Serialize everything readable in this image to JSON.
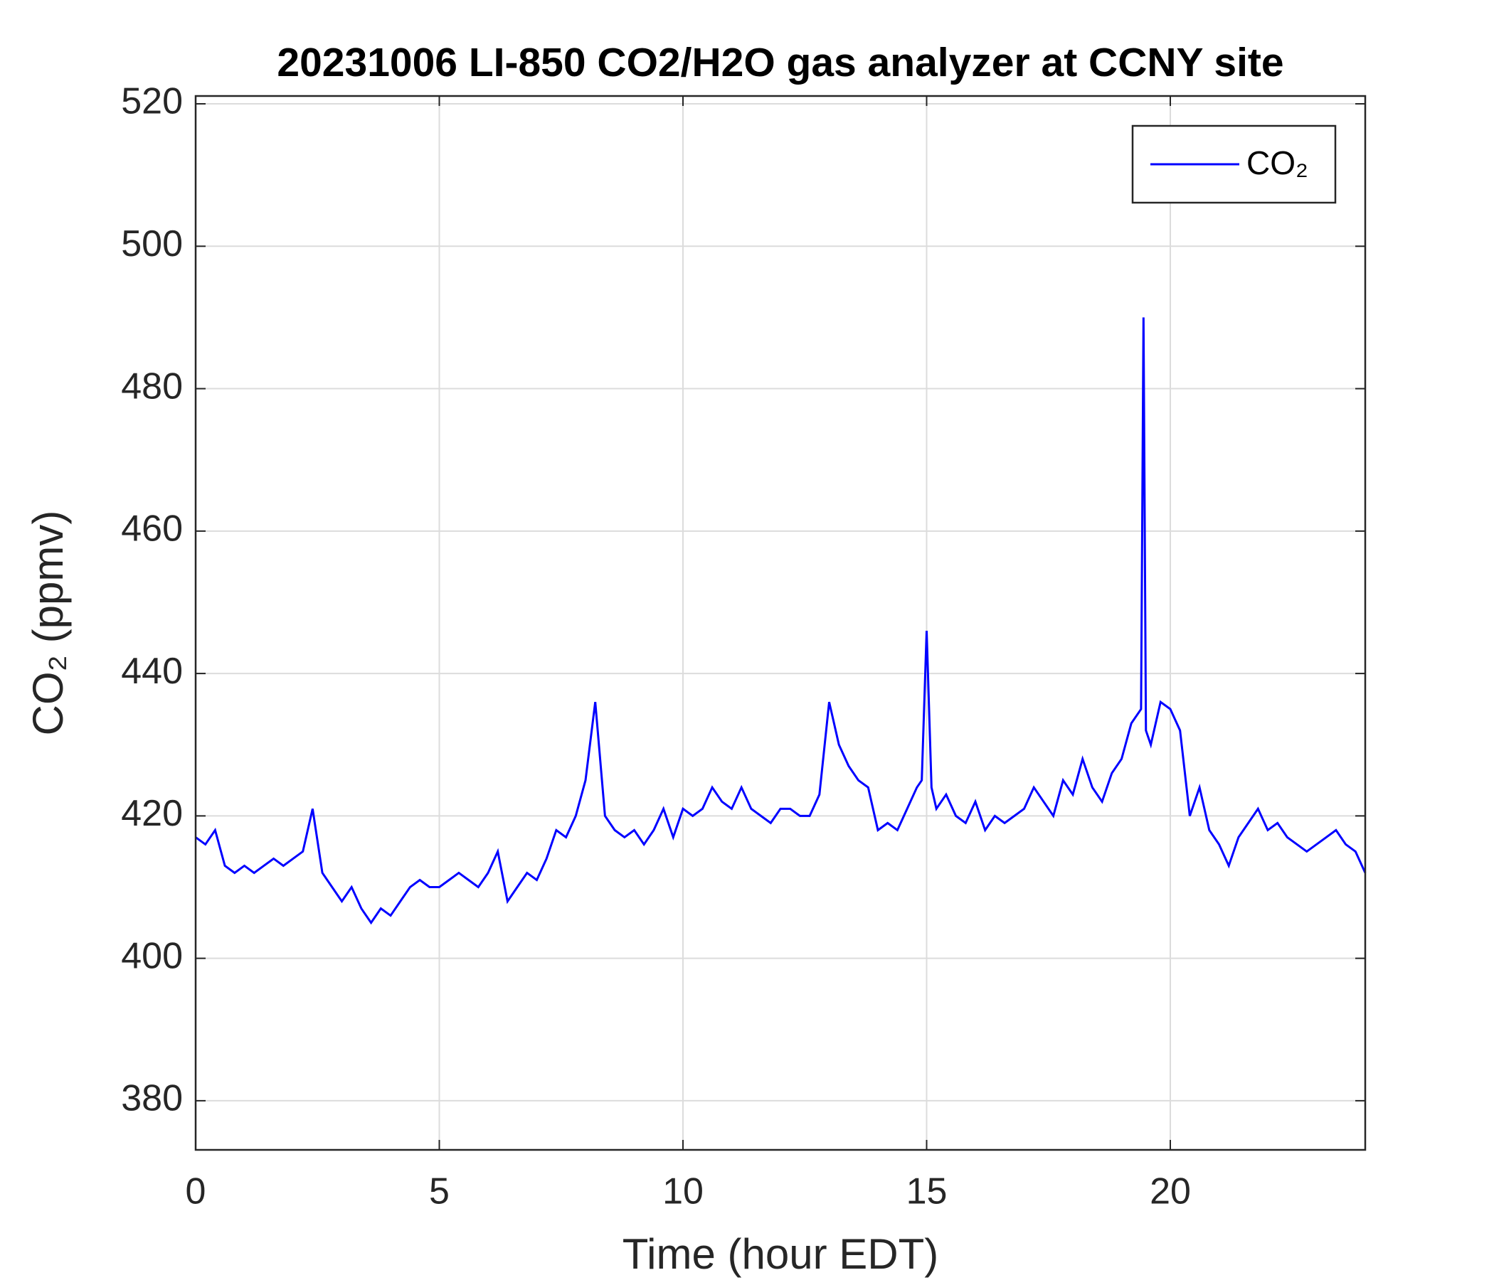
{
  "chart_data": {
    "type": "line",
    "title": "20231006 LI-850 CO2/H2O gas analyzer at CCNY site",
    "xlabel": "Time (hour EDT)",
    "ylabel": "CO₂ (ppmv)",
    "xlim": [
      0,
      24
    ],
    "xticks": [
      0,
      5,
      10,
      15,
      20
    ],
    "ylim": [
      373.1,
      521.1
    ],
    "yticks": [
      380,
      400,
      420,
      440,
      460,
      480,
      500,
      520
    ],
    "grid": true,
    "legend": "upper right",
    "x": [
      0,
      0.2,
      0.4,
      0.6,
      0.8,
      1.0,
      1.2,
      1.4,
      1.6,
      1.8,
      2.0,
      2.2,
      2.4,
      2.6,
      2.8,
      3.0,
      3.2,
      3.4,
      3.6,
      3.8,
      4.0,
      4.2,
      4.4,
      4.6,
      4.8,
      5.0,
      5.2,
      5.4,
      5.6,
      5.8,
      6.0,
      6.2,
      6.4,
      6.6,
      6.8,
      7.0,
      7.2,
      7.4,
      7.6,
      7.8,
      8.0,
      8.2,
      8.4,
      8.6,
      8.8,
      9.0,
      9.2,
      9.4,
      9.6,
      9.8,
      10.0,
      10.2,
      10.4,
      10.6,
      10.8,
      11.0,
      11.2,
      11.4,
      11.6,
      11.8,
      12.0,
      12.2,
      12.4,
      12.6,
      12.8,
      13.0,
      13.2,
      13.4,
      13.6,
      13.8,
      14.0,
      14.2,
      14.4,
      14.6,
      14.8,
      14.9,
      15.0,
      15.1,
      15.2,
      15.4,
      15.6,
      15.8,
      16.0,
      16.2,
      16.4,
      16.6,
      16.8,
      17.0,
      17.2,
      17.4,
      17.6,
      17.8,
      18.0,
      18.2,
      18.4,
      18.6,
      18.8,
      19.0,
      19.2,
      19.4,
      19.45,
      19.5,
      19.6,
      19.8,
      20.0,
      20.2,
      20.4,
      20.6,
      20.8,
      21.0,
      21.2,
      21.4,
      21.6,
      21.8,
      22.0,
      22.2,
      22.4,
      22.6,
      22.8,
      23.0,
      23.2,
      23.4,
      23.6,
      23.8,
      24.0
    ],
    "series": [
      {
        "name": "CO₂",
        "color": "#0000ff",
        "values": [
          417,
          416,
          418,
          413,
          412,
          413,
          412,
          413,
          414,
          413,
          414,
          415,
          421,
          412,
          410,
          408,
          410,
          407,
          405,
          407,
          406,
          408,
          410,
          411,
          410,
          410,
          411,
          412,
          411,
          410,
          412,
          415,
          408,
          410,
          412,
          411,
          414,
          418,
          417,
          420,
          425,
          436,
          420,
          418,
          417,
          418,
          416,
          418,
          421,
          417,
          421,
          420,
          421,
          424,
          422,
          421,
          424,
          421,
          420,
          419,
          421,
          421,
          420,
          420,
          423,
          436,
          430,
          427,
          425,
          424,
          418,
          419,
          418,
          421,
          424,
          425,
          446,
          424,
          421,
          423,
          420,
          419,
          422,
          418,
          420,
          419,
          420,
          421,
          424,
          422,
          420,
          425,
          423,
          428,
          424,
          422,
          426,
          428,
          433,
          435,
          490,
          432,
          430,
          436,
          435,
          432,
          420,
          424,
          418,
          416,
          413,
          417,
          419,
          421,
          418,
          419,
          417,
          416,
          415,
          416,
          417,
          418,
          416,
          415,
          412
        ]
      }
    ]
  }
}
